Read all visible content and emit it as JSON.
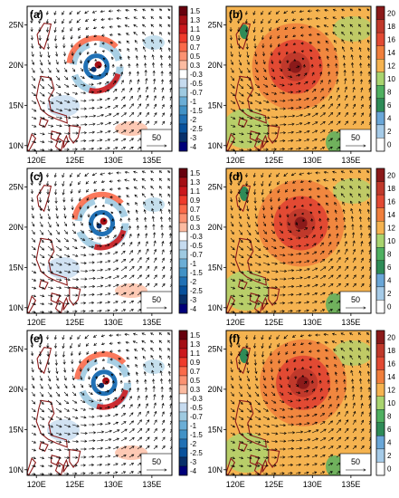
{
  "chart_data": [
    {
      "type": "heatmap",
      "panel_label": "(a)",
      "field": "diverging",
      "xticks": [
        "120E",
        "125E",
        "130E",
        "135E"
      ],
      "yticks": [
        "10N",
        "15N",
        "20N",
        "25N"
      ],
      "colorbar": [
        "1.5",
        "1.3",
        "1.1",
        "0.9",
        "0.7",
        "0.5",
        "0.3",
        "-0.3",
        "-0.5",
        "-0.7",
        "-1",
        "-1.5",
        "-2",
        "-2.5",
        "-3",
        "-4"
      ],
      "reference_vector": "50",
      "vortex_center": {
        "lon": 127.8,
        "lat": 19.8
      }
    },
    {
      "type": "heatmap",
      "panel_label": "(b)",
      "field": "sequential",
      "xticks": [
        "120E",
        "125E",
        "130E",
        "135E"
      ],
      "yticks": [
        "10N",
        "15N",
        "20N",
        "25N"
      ],
      "colorbar": [
        "20",
        "18",
        "16",
        "14",
        "12",
        "10",
        "8",
        "6",
        "4",
        "2",
        "0"
      ],
      "reference_vector": "50",
      "vortex_center": {
        "lon": 127.8,
        "lat": 19.8
      }
    },
    {
      "type": "heatmap",
      "panel_label": "(c)",
      "field": "diverging",
      "xticks": [
        "120E",
        "125E",
        "130E",
        "135E"
      ],
      "yticks": [
        "10N",
        "15N",
        "20N",
        "25N"
      ],
      "colorbar": [
        "1.5",
        "1.3",
        "1.1",
        "0.9",
        "0.7",
        "0.5",
        "0.3",
        "-0.3",
        "-0.5",
        "-0.7",
        "-1",
        "-1.5",
        "-2",
        "-2.5",
        "-3",
        "-4"
      ],
      "reference_vector": "50",
      "vortex_center": {
        "lon": 128.5,
        "lat": 20.5
      }
    },
    {
      "type": "heatmap",
      "panel_label": "(d)",
      "field": "sequential",
      "xticks": [
        "120E",
        "125E",
        "130E",
        "135E"
      ],
      "yticks": [
        "10N",
        "15N",
        "20N",
        "25N"
      ],
      "colorbar": [
        "20",
        "18",
        "16",
        "14",
        "12",
        "10",
        "8",
        "6",
        "4",
        "2",
        "0"
      ],
      "reference_vector": "50",
      "vortex_center": {
        "lon": 128.5,
        "lat": 20.5
      }
    },
    {
      "type": "heatmap",
      "panel_label": "(e)",
      "field": "diverging",
      "xticks": [
        "120E",
        "125E",
        "130E",
        "135E"
      ],
      "yticks": [
        "10N",
        "15N",
        "20N",
        "25N"
      ],
      "colorbar": [
        "1.5",
        "1.3",
        "1.1",
        "0.9",
        "0.7",
        "0.5",
        "0.3",
        "-0.3",
        "-0.5",
        "-0.7",
        "-1",
        "-1.5",
        "-2",
        "-2.5",
        "-3",
        "-4"
      ],
      "reference_vector": "50",
      "vortex_center": {
        "lon": 128.8,
        "lat": 20.8
      }
    },
    {
      "type": "heatmap",
      "panel_label": "(f)",
      "field": "sequential",
      "xticks": [
        "120E",
        "125E",
        "130E",
        "135E"
      ],
      "yticks": [
        "10N",
        "15N",
        "20N",
        "25N"
      ],
      "colorbar": [
        "20",
        "18",
        "16",
        "14",
        "12",
        "10",
        "8",
        "6",
        "4",
        "2",
        "0"
      ],
      "reference_vector": "50",
      "vortex_center": {
        "lon": 128.8,
        "lat": 20.8
      }
    }
  ],
  "palettes": {
    "diverging": [
      "#67000d",
      "#a50f15",
      "#cb181d",
      "#ef3b2c",
      "#fb6a4a",
      "#fc9272",
      "#fcbba1",
      "#ffffff",
      "#c6dbef",
      "#9ecae1",
      "#6baed6",
      "#4292c6",
      "#2171b5",
      "#08519c",
      "#08306b",
      "#00007a"
    ],
    "sequential": [
      "#8b1a1a",
      "#c0392b",
      "#e24a33",
      "#f07f3c",
      "#f5b350",
      "#a9d46f",
      "#4fb060",
      "#2e8b57",
      "#6aa7d8",
      "#a6cbe8",
      "#ffffff"
    ],
    "land_outline": "#8b1a1a",
    "arrow": "#000000"
  }
}
